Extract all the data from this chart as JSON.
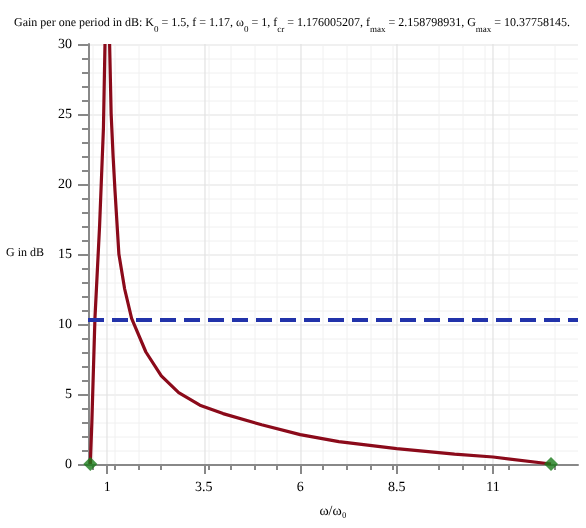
{
  "chart_data": {
    "type": "line",
    "title": "Gain per one period in dB: K$_{0}$ = 1.5, f = 1.17, ω$_{0}$ = 1, f$_{cr}$ = 1.176005207, f$_{max}$ = 2.158798931, G$_{max}$ = 10.37758145.",
    "xlabel": "ω/ω₀",
    "ylabel": "G in dB",
    "series": [
      {
        "color": "#8b0a1a",
        "marker": "none",
        "x": [
          0.56,
          0.6,
          0.68,
          0.8,
          0.9,
          0.94
        ],
        "values": [
          0,
          3,
          10.4,
          17,
          24,
          30
        ]
      },
      {
        "color": "#8b0a1a",
        "marker": "none",
        "x": [
          1.06,
          1.1,
          1.15,
          1.2,
          1.3,
          1.45,
          1.63,
          2,
          2.4,
          2.85,
          3.4,
          4,
          5,
          6,
          7,
          8.5,
          10,
          11,
          12.5
        ],
        "values": [
          30,
          25,
          22,
          19.5,
          15,
          12.5,
          10.4,
          8,
          6.3,
          5.1,
          4.2,
          3.6,
          2.8,
          2.1,
          1.6,
          1.1,
          0.7,
          0.5,
          0
        ]
      },
      {
        "type": "scatter",
        "color": "#1a7a1a",
        "marker": "diamond",
        "x": [
          0.56,
          12.5
        ],
        "values": [
          0,
          0
        ]
      }
    ],
    "ref_lines": [
      {
        "axis": "y",
        "value": 10.38,
        "color": "#2233aa",
        "line_style": "dashed"
      }
    ],
    "xlim": [
      0.5,
      13.2
    ],
    "xticks": [
      1,
      3.5,
      6,
      8.5,
      11
    ],
    "ylim": [
      0,
      30
    ],
    "yticks": [
      0,
      5,
      10,
      15,
      20,
      25,
      30
    ],
    "grid": true
  }
}
